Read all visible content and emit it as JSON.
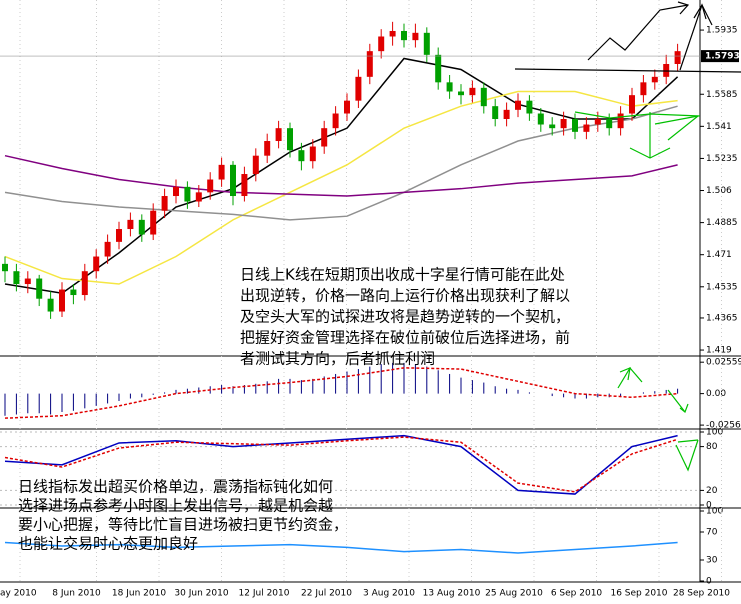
{
  "chart_data": {
    "type": "candlestick",
    "ylim": [
      1.4163,
      1.6099
    ],
    "yticks": [
      1.5935,
      1.5585,
      1.541,
      1.5235,
      1.506,
      1.4885,
      1.471,
      1.4535,
      1.4365,
      1.419
    ],
    "last_price": 1.5793,
    "up_color": "#e00000",
    "down_color": "#00a000",
    "ohlc": [
      [
        1.466,
        1.47,
        1.456,
        1.462
      ],
      [
        1.462,
        1.466,
        1.451,
        1.455
      ],
      [
        1.455,
        1.462,
        1.45,
        1.458
      ],
      [
        1.458,
        1.46,
        1.443,
        1.447
      ],
      [
        1.447,
        1.451,
        1.436,
        1.44
      ],
      [
        1.44,
        1.456,
        1.437,
        1.452
      ],
      [
        1.452,
        1.455,
        1.444,
        1.449
      ],
      [
        1.449,
        1.466,
        1.446,
        1.462
      ],
      [
        1.462,
        1.474,
        1.458,
        1.47
      ],
      [
        1.47,
        1.482,
        1.466,
        1.478
      ],
      [
        1.478,
        1.489,
        1.474,
        1.485
      ],
      [
        1.485,
        1.494,
        1.481,
        1.49
      ],
      [
        1.49,
        1.493,
        1.478,
        1.482
      ],
      [
        1.482,
        1.499,
        1.479,
        1.495
      ],
      [
        1.495,
        1.507,
        1.491,
        1.503
      ],
      [
        1.503,
        1.512,
        1.499,
        1.508
      ],
      [
        1.508,
        1.511,
        1.496,
        1.5
      ],
      [
        1.5,
        1.509,
        1.497,
        1.505
      ],
      [
        1.505,
        1.516,
        1.501,
        1.512
      ],
      [
        1.512,
        1.524,
        1.508,
        1.52
      ],
      [
        1.52,
        1.522,
        1.498,
        1.503
      ],
      [
        1.503,
        1.519,
        1.5,
        1.515
      ],
      [
        1.515,
        1.529,
        1.511,
        1.525
      ],
      [
        1.525,
        1.537,
        1.521,
        1.533
      ],
      [
        1.533,
        1.544,
        1.529,
        1.54
      ],
      [
        1.54,
        1.543,
        1.524,
        1.528
      ],
      [
        1.528,
        1.532,
        1.517,
        1.522
      ],
      [
        1.522,
        1.534,
        1.518,
        1.53
      ],
      [
        1.53,
        1.544,
        1.526,
        1.54
      ],
      [
        1.54,
        1.552,
        1.536,
        1.548
      ],
      [
        1.548,
        1.559,
        1.544,
        1.555
      ],
      [
        1.555,
        1.572,
        1.551,
        1.568
      ],
      [
        1.568,
        1.586,
        1.564,
        1.582
      ],
      [
        1.582,
        1.594,
        1.578,
        1.59
      ],
      [
        1.59,
        1.598,
        1.585,
        1.593
      ],
      [
        1.593,
        1.597,
        1.584,
        1.588
      ],
      [
        1.588,
        1.597,
        1.584,
        1.592
      ],
      [
        1.592,
        1.595,
        1.576,
        1.58
      ],
      [
        1.58,
        1.584,
        1.561,
        1.565
      ],
      [
        1.565,
        1.569,
        1.556,
        1.56
      ],
      [
        1.56,
        1.564,
        1.553,
        1.558
      ],
      [
        1.558,
        1.566,
        1.554,
        1.562
      ],
      [
        1.562,
        1.565,
        1.548,
        1.552
      ],
      [
        1.552,
        1.556,
        1.541,
        1.545
      ],
      [
        1.545,
        1.554,
        1.541,
        1.55
      ],
      [
        1.55,
        1.559,
        1.546,
        1.555
      ],
      [
        1.555,
        1.558,
        1.544,
        1.548
      ],
      [
        1.548,
        1.551,
        1.538,
        1.542
      ],
      [
        1.542,
        1.546,
        1.536,
        1.54
      ],
      [
        1.54,
        1.549,
        1.536,
        1.545
      ],
      [
        1.545,
        1.548,
        1.534,
        1.538
      ],
      [
        1.538,
        1.546,
        1.534,
        1.542
      ],
      [
        1.542,
        1.549,
        1.538,
        1.545
      ],
      [
        1.545,
        1.548,
        1.536,
        1.54
      ],
      [
        1.54,
        1.552,
        1.536,
        1.548
      ],
      [
        1.548,
        1.562,
        1.544,
        1.558
      ],
      [
        1.558,
        1.569,
        1.554,
        1.565
      ],
      [
        1.565,
        1.572,
        1.561,
        1.568
      ],
      [
        1.568,
        1.58,
        1.564,
        1.575
      ],
      [
        1.575,
        1.586,
        1.571,
        1.582
      ]
    ],
    "series": [
      {
        "color": "#000000",
        "x": [
          0,
          5,
          10,
          15,
          20,
          25,
          30,
          35,
          40,
          45,
          50,
          55,
          59
        ],
        "values": [
          1.455,
          1.45,
          1.472,
          1.497,
          1.507,
          1.527,
          1.54,
          1.578,
          1.572,
          1.553,
          1.545,
          1.545,
          1.568
        ]
      },
      {
        "color": "#f5e642",
        "x": [
          0,
          5,
          10,
          15,
          20,
          25,
          30,
          35,
          40,
          45,
          50,
          55,
          59
        ],
        "values": [
          1.47,
          1.458,
          1.455,
          1.47,
          1.49,
          1.505,
          1.52,
          1.54,
          1.552,
          1.56,
          1.56,
          1.552,
          1.555
        ]
      },
      {
        "color": "#909090",
        "x": [
          0,
          5,
          10,
          15,
          20,
          25,
          30,
          35,
          40,
          45,
          50,
          55,
          59
        ],
        "values": [
          1.505,
          1.5,
          1.497,
          1.495,
          1.493,
          1.49,
          1.492,
          1.505,
          1.52,
          1.533,
          1.54,
          1.545,
          1.552
        ]
      },
      {
        "color": "#800080",
        "x": [
          0,
          5,
          10,
          15,
          20,
          25,
          30,
          35,
          40,
          45,
          50,
          55,
          59
        ],
        "values": [
          1.525,
          1.518,
          1.512,
          1.508,
          1.505,
          1.504,
          1.503,
          1.505,
          1.507,
          1.51,
          1.512,
          1.514,
          1.52
        ]
      }
    ],
    "dates": [
      "ay 2010",
      "8 Jun 2010",
      "18 Jun 2010",
      "30 Jun 2010",
      "12 Jul 2010",
      "22 Jul 2010",
      "3 Aug 2010",
      "13 Aug 2010",
      "25 Aug 2010",
      "6 Sep 2010",
      "16 Sep 2010",
      "28 Sep 2010"
    ],
    "macd": {
      "ylim": [
        -0.028,
        0.029
      ],
      "yticks": [
        0.02559,
        {
          "value": 0,
          "label": "0.00"
        },
        -0.02564
      ],
      "color": "#000080",
      "values": [
        -0.018,
        -0.017,
        -0.016,
        -0.016,
        -0.017,
        -0.015,
        -0.014,
        -0.012,
        -0.01,
        -0.008,
        -0.006,
        -0.004,
        -0.003,
        -0.001,
        0.001,
        0.003,
        0.004,
        0.005,
        0.006,
        0.007,
        0.006,
        0.007,
        0.008,
        0.01,
        0.012,
        0.012,
        0.011,
        0.012,
        0.014,
        0.016,
        0.018,
        0.02,
        0.022,
        0.024,
        0.025,
        0.025,
        0.024,
        0.022,
        0.019,
        0.016,
        0.013,
        0.011,
        0.009,
        0.006,
        0.004,
        0.003,
        0.001,
        0.0,
        -0.002,
        -0.003,
        -0.004,
        -0.004,
        -0.003,
        -0.003,
        -0.002,
        0.0,
        0.001,
        0.002,
        0.003,
        0.004
      ],
      "signal": {
        "color": "#e00000",
        "x": [
          0,
          5,
          10,
          15,
          20,
          25,
          30,
          35,
          40,
          45,
          50,
          55,
          59
        ],
        "values": [
          -0.02,
          -0.018,
          -0.01,
          0.0,
          0.005,
          0.009,
          0.014,
          0.021,
          0.02,
          0.01,
          0.0,
          -0.003,
          0.0
        ]
      }
    },
    "stochastic": {
      "ylim": [
        0,
        100
      ],
      "yticks": [
        100,
        80,
        20,
        0
      ],
      "series": [
        {
          "color": "#0000c0",
          "x": [
            0,
            5,
            10,
            15,
            20,
            25,
            30,
            35,
            40,
            45,
            50,
            55,
            59
          ],
          "values": [
            60,
            55,
            85,
            88,
            80,
            85,
            90,
            95,
            80,
            20,
            15,
            80,
            95
          ]
        },
        {
          "color": "#e00000",
          "x": [
            0,
            5,
            10,
            15,
            20,
            25,
            30,
            35,
            40,
            45,
            50,
            55,
            59
          ],
          "values": [
            65,
            52,
            78,
            86,
            84,
            82,
            88,
            93,
            86,
            30,
            18,
            70,
            90
          ]
        }
      ]
    },
    "rsi": {
      "ylim": [
        0,
        100
      ],
      "yticks": [
        100,
        70,
        30,
        0
      ],
      "color": "#1e90ff",
      "x": [
        0,
        5,
        10,
        15,
        20,
        25,
        30,
        35,
        40,
        45,
        50,
        55,
        59
      ],
      "values": [
        55,
        50,
        52,
        48,
        50,
        52,
        48,
        42,
        45,
        40,
        45,
        50,
        55
      ]
    },
    "annotations": [
      [
        "日线上K线在短期顶出收成十字星行情可能在此处",
        "出现逆转，价格一路向上运行价格出现获利了解以",
        "及空头大军的试探进攻将是趋势逆转的一个契机，",
        "把握好资金管理选择在破位前破位后选择进场，前",
        "者测试其方向，后者抓住利润"
      ],
      [
        "日线指标发出超买价格单边，震荡指标钝化如何",
        "选择进场点参考小时图上发出信号，越是机会越",
        "要小心把握，等待比忙盲目进场被扫更节约资金，",
        "也能让交易时心态更加良好"
      ]
    ]
  }
}
